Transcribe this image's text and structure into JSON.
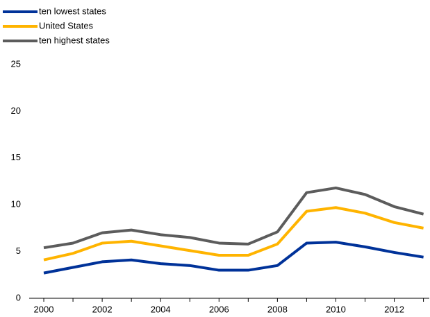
{
  "chart_data": {
    "type": "line",
    "x": [
      2000,
      2001,
      2002,
      2003,
      2004,
      2005,
      2006,
      2007,
      2008,
      2009,
      2010,
      2011,
      2012,
      2013
    ],
    "series": [
      {
        "name": "ten lowest states",
        "color": "#003299",
        "values": [
          2.7,
          3.3,
          3.9,
          4.1,
          3.7,
          3.5,
          3.0,
          3.0,
          3.5,
          5.9,
          6.0,
          5.5,
          4.9,
          4.4
        ]
      },
      {
        "name": "United States",
        "color": "#ffb400",
        "values": [
          4.1,
          4.8,
          5.9,
          6.1,
          5.6,
          5.1,
          4.6,
          4.6,
          5.8,
          9.3,
          9.7,
          9.1,
          8.1,
          7.5
        ]
      },
      {
        "name": "ten highest states",
        "color": "#5c5c5c",
        "values": [
          5.4,
          5.9,
          7.0,
          7.3,
          6.8,
          6.5,
          5.9,
          5.8,
          7.1,
          11.3,
          11.8,
          11.1,
          9.8,
          9.0
        ]
      }
    ],
    "xlim": [
      1999.5,
      2013.2
    ],
    "xticks": [
      2000,
      2002,
      2004,
      2006,
      2008,
      2010,
      2012
    ],
    "ylim": [
      0,
      25
    ],
    "yticks": [
      0,
      5,
      10,
      15,
      20,
      25
    ],
    "grid": false,
    "legend": "top-left"
  }
}
